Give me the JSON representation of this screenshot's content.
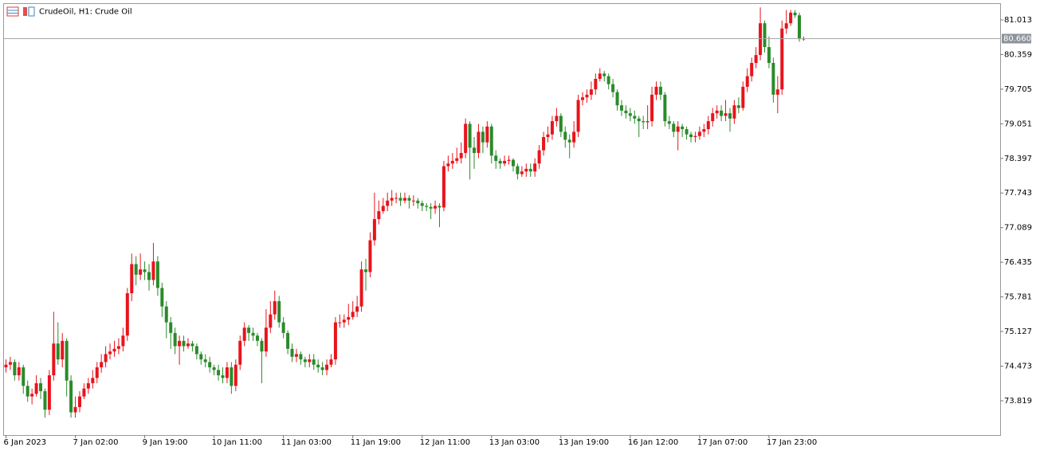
{
  "chart_data": {
    "type": "candlestick",
    "title": "CrudeOil, H1:  Crude Oil",
    "categories": [
      "6 Jan 2023",
      null,
      null,
      null,
      null,
      null,
      null,
      null,
      null,
      null,
      null,
      null,
      null,
      null,
      null,
      null,
      "7 Jan 02:00",
      null,
      null,
      null,
      null,
      null,
      null,
      null,
      null,
      null,
      null,
      null,
      null,
      null,
      null,
      null,
      "9 Jan 19:00",
      null,
      null,
      null,
      null,
      null,
      null,
      null,
      null,
      null,
      null,
      null,
      null,
      null,
      null,
      null,
      "10 Jan 11:00",
      null,
      null,
      null,
      null,
      null,
      null,
      null,
      null,
      null,
      null,
      null,
      null,
      null,
      null,
      null,
      "11 Jan 03:00",
      null,
      null,
      null,
      null,
      null,
      null,
      null,
      null,
      null,
      null,
      null,
      null,
      null,
      null,
      null,
      "11 Jan 19:00",
      null,
      null,
      null,
      null,
      null,
      null,
      null,
      null,
      null,
      null,
      null,
      null,
      null,
      null,
      null,
      "12 Jan 11:00",
      null,
      null,
      null,
      null,
      null,
      null,
      null,
      null,
      null,
      null,
      null,
      null,
      null,
      null,
      null,
      "13 Jan 03:00",
      null,
      null,
      null,
      null,
      null,
      null,
      null,
      null,
      null,
      null,
      null,
      null,
      null,
      null,
      null,
      "13 Jan 19:00",
      null,
      null,
      null,
      null,
      null,
      null,
      null,
      null,
      null,
      null,
      null,
      null,
      null,
      null,
      null,
      "16 Jan 12:00",
      null,
      null,
      null,
      null,
      null,
      null,
      null,
      null,
      null,
      null,
      null,
      null,
      null,
      null,
      null,
      "17 Jan 07:00",
      null,
      null,
      null,
      null,
      null,
      null,
      null,
      null,
      null,
      null,
      null,
      null,
      null,
      null,
      null,
      "17 Jan 23:00",
      null,
      null,
      null,
      null,
      null,
      null,
      null,
      null
    ],
    "open": [
      74.45,
      74.5,
      74.55,
      74.3,
      74.45,
      74.1,
      73.9,
      73.95,
      74.15,
      74.0,
      73.65,
      74.3,
      74.9,
      74.6,
      74.95,
      74.2,
      73.6,
      73.7,
      73.9,
      74.05,
      74.15,
      74.25,
      74.45,
      74.55,
      74.7,
      74.75,
      74.8,
      74.85,
      75.05,
      75.85,
      76.4,
      76.2,
      76.3,
      76.25,
      76.1,
      76.45,
      75.95,
      75.6,
      75.3,
      75.1,
      74.85,
      74.95,
      74.85,
      74.9,
      74.85,
      74.7,
      74.6,
      74.55,
      74.45,
      74.4,
      74.3,
      74.25,
      74.45,
      74.1,
      74.5,
      74.95,
      75.2,
      75.1,
      75.05,
      74.95,
      74.75,
      75.2,
      75.45,
      75.7,
      75.3,
      75.1,
      74.8,
      74.65,
      74.7,
      74.6,
      74.55,
      74.6,
      74.5,
      74.45,
      74.4,
      74.5,
      74.6,
      75.3,
      75.3,
      75.35,
      75.4,
      75.5,
      75.6,
      76.3,
      76.25,
      76.85,
      77.25,
      77.4,
      77.5,
      77.6,
      77.65,
      77.65,
      77.6,
      77.65,
      77.6,
      77.6,
      77.55,
      77.5,
      77.48,
      77.45,
      77.5,
      77.47,
      78.25,
      78.3,
      78.35,
      78.4,
      78.5,
      79.05,
      78.6,
      78.5,
      78.9,
      78.7,
      79.0,
      78.45,
      78.35,
      78.3,
      78.35,
      78.37,
      78.25,
      78.1,
      78.15,
      78.2,
      78.15,
      78.3,
      78.55,
      78.8,
      78.85,
      79.1,
      79.2,
      78.9,
      78.75,
      78.7,
      78.9,
      79.5,
      79.55,
      79.6,
      79.7,
      79.9,
      80.0,
      79.95,
      79.8,
      79.65,
      79.4,
      79.3,
      79.25,
      79.2,
      79.15,
      79.1,
      79.08,
      79.1,
      79.6,
      79.75,
      79.6,
      79.1,
      79.05,
      78.9,
      79.0,
      78.95,
      78.85,
      78.8,
      78.82,
      78.9,
      78.95,
      79.1,
      79.25,
      79.3,
      79.2,
      79.25,
      79.15,
      79.4,
      79.35,
      79.75,
      79.95,
      80.2,
      80.35,
      80.95,
      80.5,
      80.2,
      79.6,
      79.7,
      80.85,
      80.95,
      81.15,
      81.1,
      80.65
    ],
    "high": [
      74.6,
      74.65,
      74.6,
      74.55,
      74.5,
      74.2,
      74.05,
      74.3,
      74.25,
      74.05,
      74.4,
      75.5,
      75.3,
      75.1,
      75.0,
      74.3,
      73.9,
      74.0,
      74.15,
      74.25,
      74.4,
      74.55,
      74.7,
      74.85,
      74.9,
      74.95,
      75.0,
      75.2,
      75.95,
      76.6,
      76.55,
      76.6,
      76.45,
      76.4,
      76.8,
      76.55,
      76.05,
      75.7,
      75.4,
      75.2,
      75.05,
      75.05,
      75.0,
      74.95,
      74.9,
      74.75,
      74.7,
      74.65,
      74.5,
      74.5,
      74.45,
      74.55,
      74.55,
      74.6,
      75.05,
      75.3,
      75.25,
      75.2,
      75.1,
      75.0,
      75.55,
      75.7,
      75.9,
      75.8,
      75.4,
      75.15,
      74.9,
      74.8,
      74.75,
      74.65,
      74.7,
      74.7,
      74.6,
      74.55,
      74.6,
      74.7,
      75.4,
      75.45,
      75.45,
      75.65,
      75.7,
      75.8,
      76.45,
      76.5,
      77.0,
      77.75,
      77.6,
      77.65,
      77.75,
      77.8,
      77.75,
      77.75,
      77.75,
      77.7,
      77.7,
      77.65,
      77.6,
      77.55,
      77.55,
      77.6,
      77.55,
      78.35,
      78.45,
      78.5,
      78.6,
      78.7,
      79.15,
      79.1,
      78.8,
      79.05,
      79.0,
      79.1,
      79.05,
      78.55,
      78.4,
      78.45,
      78.45,
      78.4,
      78.3,
      78.25,
      78.3,
      78.3,
      78.4,
      78.65,
      78.9,
      79.0,
      79.2,
      79.35,
      79.25,
      79.0,
      78.85,
      79.1,
      79.6,
      79.65,
      79.7,
      79.85,
      80.0,
      80.1,
      80.05,
      80.0,
      79.9,
      79.7,
      79.5,
      79.4,
      79.35,
      79.3,
      79.2,
      79.2,
      79.4,
      79.75,
      79.85,
      79.85,
      79.65,
      79.2,
      79.1,
      79.1,
      79.05,
      79.0,
      78.9,
      78.9,
      79.0,
      79.05,
      79.2,
      79.35,
      79.4,
      79.4,
      79.5,
      79.35,
      79.5,
      79.55,
      79.85,
      80.1,
      80.3,
      80.5,
      81.25,
      81.0,
      80.7,
      80.3,
      79.95,
      81.0,
      81.2,
      81.2,
      81.2,
      81.15,
      80.7
    ],
    "low": [
      74.35,
      74.4,
      74.2,
      74.2,
      73.95,
      73.8,
      73.75,
      73.9,
      73.85,
      73.5,
      73.55,
      74.2,
      74.5,
      74.45,
      73.9,
      73.5,
      73.5,
      73.6,
      73.85,
      73.95,
      74.05,
      74.15,
      74.35,
      74.45,
      74.6,
      74.65,
      74.7,
      74.75,
      74.95,
      75.7,
      76.0,
      76.1,
      76.1,
      75.9,
      76.0,
      75.8,
      75.4,
      75.0,
      74.8,
      74.7,
      74.5,
      74.75,
      74.8,
      74.75,
      74.6,
      74.5,
      74.45,
      74.35,
      74.3,
      74.2,
      74.15,
      74.15,
      73.95,
      74.0,
      74.4,
      74.85,
      74.95,
      74.95,
      74.85,
      74.15,
      74.65,
      75.1,
      75.35,
      75.2,
      75.0,
      74.7,
      74.55,
      74.55,
      74.5,
      74.45,
      74.45,
      74.4,
      74.35,
      74.3,
      74.3,
      74.45,
      74.5,
      75.2,
      75.2,
      75.25,
      75.35,
      75.4,
      75.5,
      75.9,
      76.15,
      76.75,
      77.15,
      77.35,
      77.4,
      77.5,
      77.55,
      77.5,
      77.55,
      77.45,
      77.5,
      77.45,
      77.4,
      77.4,
      77.25,
      77.35,
      77.1,
      77.4,
      78.15,
      78.2,
      78.3,
      78.3,
      78.4,
      78.0,
      78.2,
      78.4,
      78.5,
      78.6,
      78.3,
      78.2,
      78.2,
      78.25,
      78.28,
      78.15,
      78.0,
      78.05,
      78.05,
      78.05,
      78.05,
      78.2,
      78.45,
      78.7,
      78.75,
      79.0,
      78.8,
      78.6,
      78.4,
      78.6,
      78.8,
      79.4,
      79.45,
      79.5,
      79.6,
      79.85,
      79.85,
      79.7,
      79.55,
      79.3,
      79.2,
      79.15,
      79.1,
      79.05,
      78.8,
      78.95,
      78.95,
      79.0,
      79.5,
      79.5,
      79.0,
      78.95,
      78.8,
      78.55,
      78.8,
      78.75,
      78.7,
      78.7,
      78.75,
      78.8,
      78.85,
      79.0,
      79.15,
      79.1,
      79.1,
      78.9,
      79.05,
      79.25,
      79.3,
      79.65,
      79.85,
      80.1,
      80.25,
      80.4,
      80.1,
      79.45,
      79.25,
      79.6,
      80.75,
      80.9,
      81.05,
      80.6,
      80.62
    ],
    "close": [
      74.5,
      74.55,
      74.3,
      74.45,
      74.1,
      73.9,
      73.95,
      74.15,
      74.0,
      73.65,
      74.3,
      74.9,
      74.6,
      74.95,
      74.2,
      73.6,
      73.7,
      73.9,
      74.05,
      74.15,
      74.25,
      74.45,
      74.55,
      74.7,
      74.75,
      74.8,
      74.85,
      75.05,
      75.85,
      76.4,
      76.2,
      76.3,
      76.25,
      76.1,
      76.45,
      75.95,
      75.6,
      75.3,
      75.1,
      74.85,
      74.95,
      74.85,
      74.9,
      74.85,
      74.7,
      74.6,
      74.55,
      74.45,
      74.4,
      74.3,
      74.25,
      74.45,
      74.1,
      74.5,
      74.95,
      75.2,
      75.1,
      75.05,
      74.95,
      74.75,
      75.2,
      75.45,
      75.7,
      75.3,
      75.1,
      74.8,
      74.65,
      74.7,
      74.6,
      74.55,
      74.6,
      74.5,
      74.45,
      74.4,
      74.5,
      74.6,
      75.3,
      75.3,
      75.35,
      75.4,
      75.5,
      75.6,
      76.3,
      76.25,
      76.85,
      77.25,
      77.4,
      77.5,
      77.6,
      77.65,
      77.65,
      77.6,
      77.65,
      77.6,
      77.6,
      77.55,
      77.5,
      77.48,
      77.45,
      77.5,
      77.47,
      78.25,
      78.3,
      78.35,
      78.4,
      78.5,
      79.05,
      78.6,
      78.5,
      78.9,
      78.7,
      79.0,
      78.45,
      78.35,
      78.3,
      78.35,
      78.37,
      78.25,
      78.1,
      78.15,
      78.2,
      78.15,
      78.3,
      78.55,
      78.8,
      78.85,
      79.1,
      79.2,
      78.9,
      78.75,
      78.7,
      78.9,
      79.5,
      79.55,
      79.6,
      79.7,
      79.9,
      80.0,
      79.95,
      79.8,
      79.65,
      79.4,
      79.3,
      79.25,
      79.2,
      79.15,
      79.1,
      79.08,
      79.1,
      79.6,
      79.75,
      79.6,
      79.1,
      79.05,
      78.9,
      79.0,
      78.95,
      78.85,
      78.8,
      78.82,
      78.9,
      78.95,
      79.1,
      79.25,
      79.3,
      79.2,
      79.25,
      79.15,
      79.4,
      79.35,
      79.75,
      79.95,
      80.2,
      80.35,
      80.95,
      80.5,
      80.2,
      79.6,
      79.7,
      80.85,
      80.95,
      81.15,
      81.1,
      80.65,
      80.66
    ],
    "up_color": "#e8141c",
    "down_color": "#2b8a2b",
    "ylim": [
      73.171,
      81.314
    ],
    "yticks": [
      81.013,
      80.359,
      79.705,
      79.051,
      78.397,
      77.743,
      77.089,
      76.435,
      75.781,
      75.127,
      74.473,
      73.819
    ],
    "last_price": {
      "value": 80.66,
      "label": "80.660"
    },
    "grid": false
  }
}
